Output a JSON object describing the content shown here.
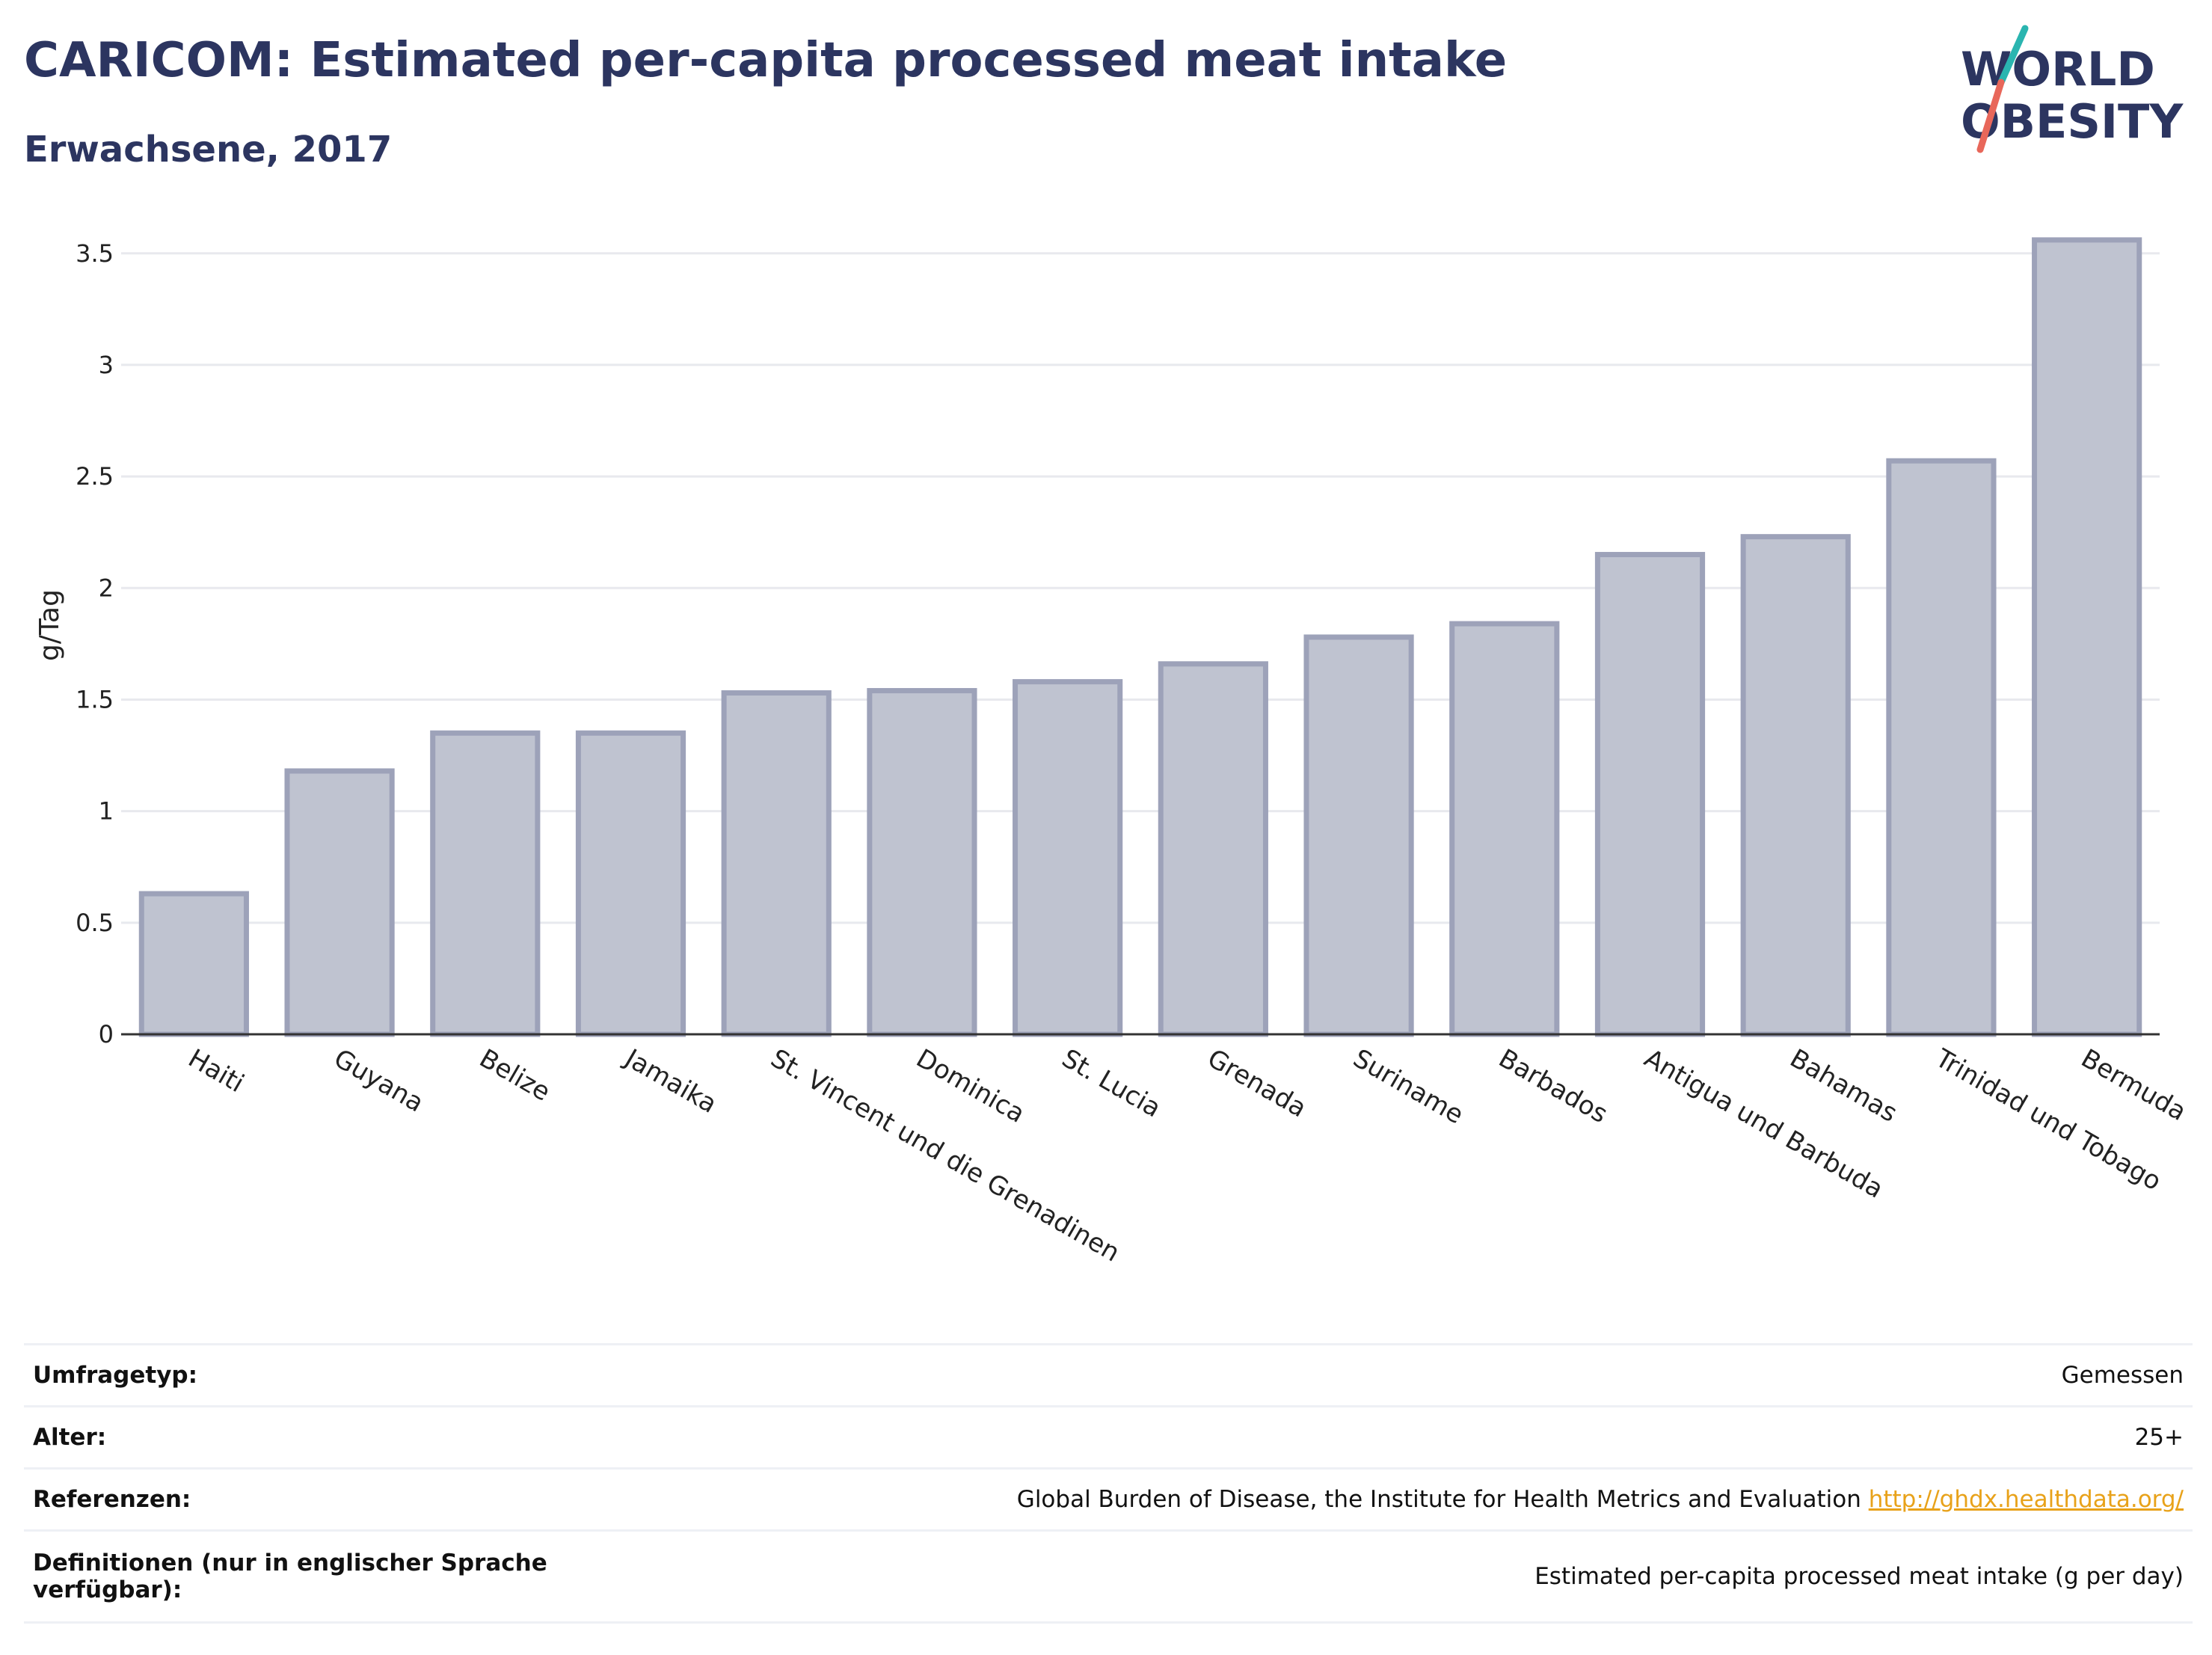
{
  "header": {
    "title": "CARICOM: Estimated per-capita processed meat intake",
    "subtitle": "Erwachsene, 2017"
  },
  "logo": {
    "line1": "WORLD",
    "line2": "OBESITY",
    "colors": {
      "text": "#2c3560",
      "slash_teal": "#2ab5b0",
      "slash_coral": "#e8675a"
    }
  },
  "chart_data": {
    "type": "bar",
    "categories": [
      "Haiti",
      "Guyana",
      "Belize",
      "Jamaika",
      "St. Vincent und die Grenadinen",
      "Dominica",
      "St. Lucia",
      "Grenada",
      "Suriname",
      "Barbados",
      "Antigua und Barbuda",
      "Bahamas",
      "Trinidad und Tobago",
      "Bermuda"
    ],
    "values": [
      0.63,
      1.18,
      1.35,
      1.35,
      1.53,
      1.54,
      1.58,
      1.66,
      1.78,
      1.84,
      2.15,
      2.23,
      2.57,
      3.56
    ],
    "ylabel": "g/Tag",
    "xlabel": "",
    "ylim": [
      0,
      3.65
    ],
    "yticks": [
      0,
      0.5,
      1,
      1.5,
      2,
      2.5,
      3,
      3.5
    ],
    "ytick_labels": [
      "0",
      "0.5",
      "1",
      "1.5",
      "2",
      "2.5",
      "3",
      "3.5"
    ],
    "grid": true,
    "colors": {
      "bar_fill": "#bfc3d0",
      "bar_stroke": "#9da2b9",
      "axis": "#333333",
      "grid": "#e8e9ee",
      "text": "#222222"
    }
  },
  "meta": {
    "rows": [
      {
        "key": "Umfragetyp:",
        "value": "Gemessen"
      },
      {
        "key": "Alter:",
        "value": "25+"
      },
      {
        "key": "Referenzen:",
        "value": "Global Burden of Disease, the Institute for Health Metrics and Evaluation",
        "link": "http://ghdx.healthdata.org/"
      },
      {
        "key": "Definitionen (nur in englischer Sprache verfügbar):",
        "value": "Estimated per-capita processed meat intake (g per day)"
      }
    ]
  }
}
